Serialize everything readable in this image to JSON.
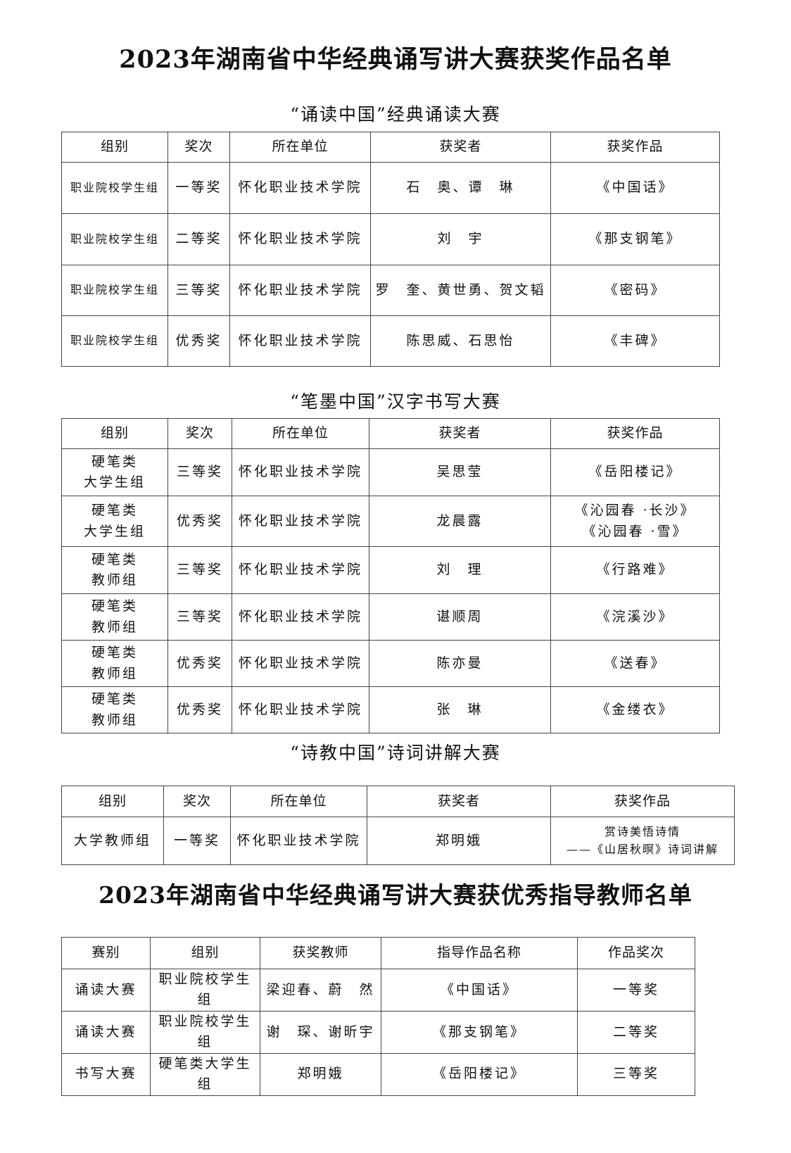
{
  "title": "2023年湖南省中华经典诵写讲大赛获奖作品名单",
  "sections": [
    {
      "heading": "“诵读中国”经典诵读大赛",
      "headers": [
        "组别",
        "奖次",
        "所在单位",
        "获奖者",
        "获奖作品"
      ],
      "rows": [
        [
          "职业院校学生组",
          "一等奖",
          "怀化职业技术学院",
          "石　奥、谭　琳",
          "《中国话》"
        ],
        [
          "职业院校学生组",
          "二等奖",
          "怀化职业技术学院",
          "刘　宇",
          "《那支钢笔》"
        ],
        [
          "职业院校学生组",
          "三等奖",
          "怀化职业技术学院",
          "罗　奎、黄世勇、贺文韬",
          "《密码》"
        ],
        [
          "职业院校学生组",
          "优秀奖",
          "怀化职业技术学院",
          "陈思威、石思怡",
          "《丰碑》"
        ]
      ]
    },
    {
      "heading": "“笔墨中国”汉字书写大赛",
      "headers": [
        "组别",
        "奖次",
        "所在单位",
        "获奖者",
        "获奖作品"
      ],
      "rows": [
        [
          "硬笔类\n大学生组",
          "三等奖",
          "怀化职业技术学院",
          "吴思莹",
          "《岳阳楼记》"
        ],
        [
          "硬笔类\n大学生组",
          "优秀奖",
          "怀化职业技术学院",
          "龙晨露",
          "《沁园春 ·长沙》\n《沁园春 ·雪》"
        ],
        [
          "硬笔类\n教师组",
          "三等奖",
          "怀化职业技术学院",
          "刘　理",
          "《行路难》"
        ],
        [
          "硬笔类\n教师组",
          "三等奖",
          "怀化职业技术学院",
          "谌顺周",
          "《浣溪沙》"
        ],
        [
          "硬笔类\n教师组",
          "优秀奖",
          "怀化职业技术学院",
          "陈亦曼",
          "《送春》"
        ],
        [
          "硬笔类\n教师组",
          "优秀奖",
          "怀化职业技术学院",
          "张　琳",
          "《金缕衣》"
        ]
      ]
    },
    {
      "heading": "“诗教中国”诗词讲解大赛",
      "headers": [
        "组别",
        "奖次",
        "所在单位",
        "获奖者",
        "获奖作品"
      ],
      "rows": [
        [
          "大学教师组",
          "一等奖",
          "怀化职业技术学院",
          "郑明娥",
          "赏诗美悟诗情\n——《山居秋暝》诗词讲解"
        ]
      ]
    }
  ],
  "teachers": {
    "title": "2023年湖南省中华经典诵写讲大赛获优秀指导教师名单",
    "headers": [
      "赛别",
      "组别",
      "获奖教师",
      "指导作品名称",
      "作品奖次"
    ],
    "rows": [
      [
        "诵读大赛",
        "职业院校学生组",
        "梁迎春、蔚　然",
        "《中国话》",
        "一等奖"
      ],
      [
        "诵读大赛",
        "职业院校学生组",
        "谢　琛、谢昕宇",
        "《那支钢笔》",
        "二等奖"
      ],
      [
        "书写大赛",
        "硬笔类大学生组",
        "郑明娥",
        "《岳阳楼记》",
        "三等奖"
      ]
    ]
  }
}
